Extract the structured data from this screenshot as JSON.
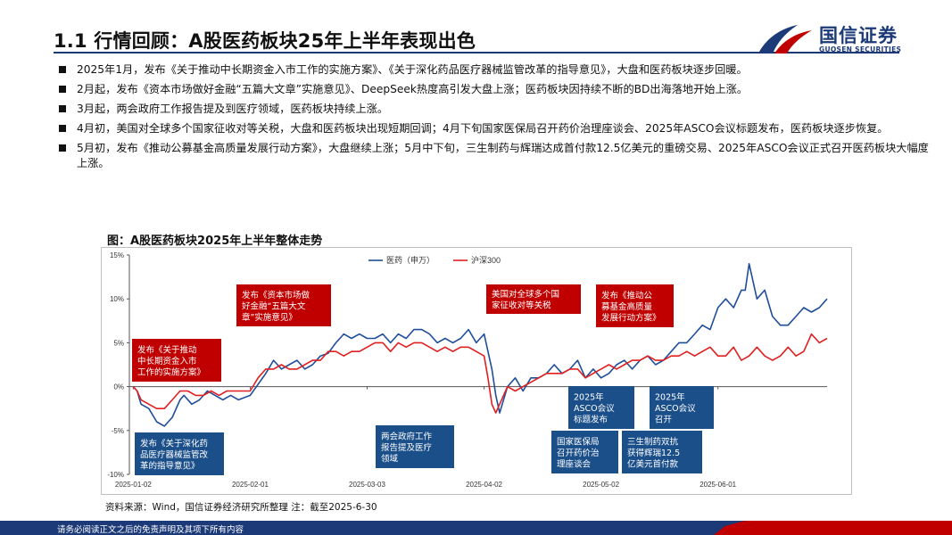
{
  "page": {
    "title": "1.1 行情回顾：A股医药板块25年上半年表现出色",
    "logo_cn": "国信证券",
    "logo_en": "GUOSEN SECURITIES",
    "bullets": [
      "2025年1月，发布《关于推动中长期资金入市工作的实施方案》、《关于深化药品医疗器械监管改革的指导意见》，大盘和医药板块逐步回暖。",
      "2月起，发布《资本市场做好金融“五篇大文章”实施意见》、DeepSeek热度高引发大盘上涨；医药板块因持续不断的BD出海落地开始上涨。",
      "3月起，两会政府工作报告提及到医疗领域，医药板块持续上涨。",
      "4月初，美国对全球多个国家征收对等关税，大盘和医药板块出现短期回调；4月下旬国家医保局召开药价治理座谈会、2025年ASCO会议标题发布，医药板块逐步恢复。",
      "5月初，发布《推动公募基金高质量发展行动方案》，大盘继续上涨；5月中下旬，三生制药与辉瑞达成首付款12.5亿美元的重磅交易、2025年ASCO会议正式召开医药板块大幅度上涨。"
    ],
    "chart_title": "图：A股医药板块2025年上半年整体走势",
    "source": "资料来源：Wind，国信证券经济研究所整理  注：截至2025-6-30",
    "footer": "请务必阅读正文之后的免责声明及其项下所有内容"
  },
  "colors": {
    "navy": "#1c3a78",
    "red": "#c00000",
    "line_pharma": "#1f4e9a",
    "line_hs300": "#e02020",
    "annot_red": "#c00000",
    "annot_blue": "#1b4f8a"
  },
  "chart_data": {
    "type": "line",
    "title": "图：A股医药板块2025年上半年整体走势",
    "y_unit": "%",
    "ylim": [
      -10,
      15
    ],
    "yticks": [
      "15%",
      "10%",
      "5%",
      "0%",
      "-5%",
      "-10%"
    ],
    "ytick_values": [
      15,
      10,
      5,
      0,
      -5,
      -10
    ],
    "x_day_range": [
      0,
      179
    ],
    "xticks": [
      {
        "label": "2025-01-02",
        "day": 1
      },
      {
        "label": "2025-02-01",
        "day": 31
      },
      {
        "label": "2025-03-03",
        "day": 61
      },
      {
        "label": "2025-04-02",
        "day": 91
      },
      {
        "label": "2025-05-02",
        "day": 121
      },
      {
        "label": "2025-06-01",
        "day": 151
      }
    ],
    "series": [
      {
        "name": "医药（申万）",
        "day": [
          1,
          2,
          3,
          5,
          7,
          9,
          11,
          13,
          14,
          16,
          18,
          20,
          22,
          24,
          26,
          28,
          31,
          35,
          37,
          39,
          41,
          43,
          45,
          47,
          49,
          51,
          53,
          55,
          57,
          59,
          61,
          63,
          65,
          67,
          69,
          71,
          73,
          75,
          77,
          79,
          81,
          83,
          85,
          87,
          89,
          91,
          93,
          94,
          95,
          97,
          99,
          101,
          103,
          105,
          107,
          109,
          111,
          113,
          115,
          117,
          119,
          121,
          123,
          125,
          127,
          129,
          131,
          133,
          135,
          137,
          139,
          141,
          143,
          145,
          147,
          149,
          151,
          153,
          155,
          157,
          158,
          159,
          161,
          163,
          165,
          167,
          169,
          171,
          173,
          175,
          177,
          179
        ],
        "values": [
          0,
          -0.5,
          -2,
          -2.5,
          -4,
          -4.5,
          -3.5,
          -1.5,
          -1,
          -2,
          -1.5,
          -0.5,
          -1,
          -1.5,
          -1,
          -1.5,
          -1,
          1.5,
          3,
          2,
          2.5,
          3,
          2,
          2.5,
          3.5,
          3.8,
          5,
          6,
          5.5,
          6,
          5.5,
          5.5,
          6,
          5,
          6,
          5.5,
          6.5,
          6.5,
          6,
          5,
          5.5,
          5,
          5.5,
          6.5,
          5,
          6,
          2,
          -1,
          -3,
          0,
          1,
          -0.5,
          1,
          1,
          1.5,
          2.5,
          1.5,
          2,
          3,
          1,
          2,
          1,
          1.5,
          2.5,
          3,
          2,
          3,
          3.5,
          2.5,
          3,
          4,
          5,
          5,
          6,
          7,
          6.5,
          9,
          10,
          9,
          11,
          11,
          14,
          10,
          11,
          8,
          7,
          7,
          8,
          9,
          8.5,
          9,
          10
        ]
      },
      {
        "name": "沪深300",
        "day": [
          1,
          2,
          3,
          5,
          7,
          9,
          11,
          13,
          15,
          17,
          19,
          21,
          23,
          25,
          27,
          29,
          31,
          33,
          35,
          37,
          39,
          41,
          43,
          45,
          47,
          49,
          51,
          53,
          55,
          57,
          59,
          61,
          63,
          65,
          67,
          69,
          71,
          73,
          75,
          77,
          79,
          81,
          83,
          85,
          87,
          89,
          91,
          92,
          93,
          94,
          95,
          97,
          99,
          101,
          103,
          105,
          107,
          109,
          111,
          113,
          115,
          117,
          119,
          121,
          123,
          125,
          127,
          129,
          131,
          133,
          135,
          137,
          139,
          141,
          143,
          145,
          147,
          149,
          151,
          153,
          155,
          157,
          159,
          161,
          163,
          165,
          167,
          169,
          171,
          173,
          175,
          177,
          179
        ],
        "values": [
          0,
          -0.5,
          -1.5,
          -2,
          -2.5,
          -2.5,
          -1.5,
          -0.5,
          -0.5,
          -1,
          -1,
          -0.5,
          -1,
          -0.5,
          -0.5,
          -0.5,
          -0.5,
          1,
          2,
          2,
          2.5,
          2,
          2,
          2.5,
          3,
          3,
          4,
          4,
          3.5,
          4,
          4,
          4.5,
          5,
          5,
          4,
          5,
          4.5,
          5,
          5,
          4.5,
          4,
          4.5,
          4,
          4.5,
          4.5,
          4,
          3.5,
          1,
          -2,
          -3,
          -2,
          0,
          -0.5,
          0,
          0.5,
          1,
          1.5,
          1.5,
          1.5,
          2,
          2,
          1,
          1.5,
          2,
          2.5,
          2,
          2.5,
          3,
          3,
          3.5,
          3,
          3,
          3.5,
          3.5,
          4,
          3.5,
          4,
          4.5,
          3.5,
          3.5,
          4.5,
          3,
          3.5,
          4.5,
          3.5,
          3,
          3.5,
          4.5,
          3.5,
          4,
          6,
          5,
          5.5
        ]
      }
    ],
    "legend": {
      "position": "top-center",
      "entries": [
        "医药（申万）",
        "沪深300"
      ]
    },
    "annotations": [
      {
        "text": "发布《关于推动中长期资金入市工作的实施方案》",
        "lines": [
          "发布《关于推动",
          "中长期资金入市",
          "工作的实施方案》"
        ],
        "style": "red"
      },
      {
        "text": "发布《资本市场做好金融“五篇大文章”实施意见》",
        "lines": [
          "发布《资本市场做",
          "好金融“五篇大文",
          "章”实施意见》"
        ],
        "style": "red"
      },
      {
        "text": "美国对全球多个国家征收对等关税",
        "lines": [
          "美国对全球多个国",
          "家征收对等关税"
        ],
        "style": "red"
      },
      {
        "text": "发布《推动公募基金高质量发展行动方案》",
        "lines": [
          "发布《推动公",
          "募基金高质量",
          "发展行动方案》"
        ],
        "style": "red"
      },
      {
        "text": "发布《关于深化药品医疗器械监管改革的指导意见》",
        "lines": [
          "发布《关于深化药",
          "品医疗器械监管改",
          "革的指导意见》"
        ],
        "style": "blue"
      },
      {
        "text": "两会政府工作报告提及医疗领域",
        "lines": [
          "两会政府工作",
          "报告提及医疗",
          "领域"
        ],
        "style": "blue"
      },
      {
        "text": "2025年ASCO会议标题发布",
        "lines": [
          "2025年",
          "ASCO会议",
          "标题发布"
        ],
        "style": "blue"
      },
      {
        "text": "2025年ASCO会议召开",
        "lines": [
          "2025年",
          "ASCO会议",
          "召开"
        ],
        "style": "blue"
      },
      {
        "text": "国家医保局召开药价治理座谈会",
        "lines": [
          "国家医保局",
          "召开药价治",
          "理座谈会"
        ],
        "style": "blue"
      },
      {
        "text": "三生制药双抗获得辉瑞12.5亿美元首付款",
        "lines": [
          "三生制药双抗",
          "获得辉瑞12.5",
          "亿美元首付款"
        ],
        "style": "blue"
      }
    ]
  }
}
